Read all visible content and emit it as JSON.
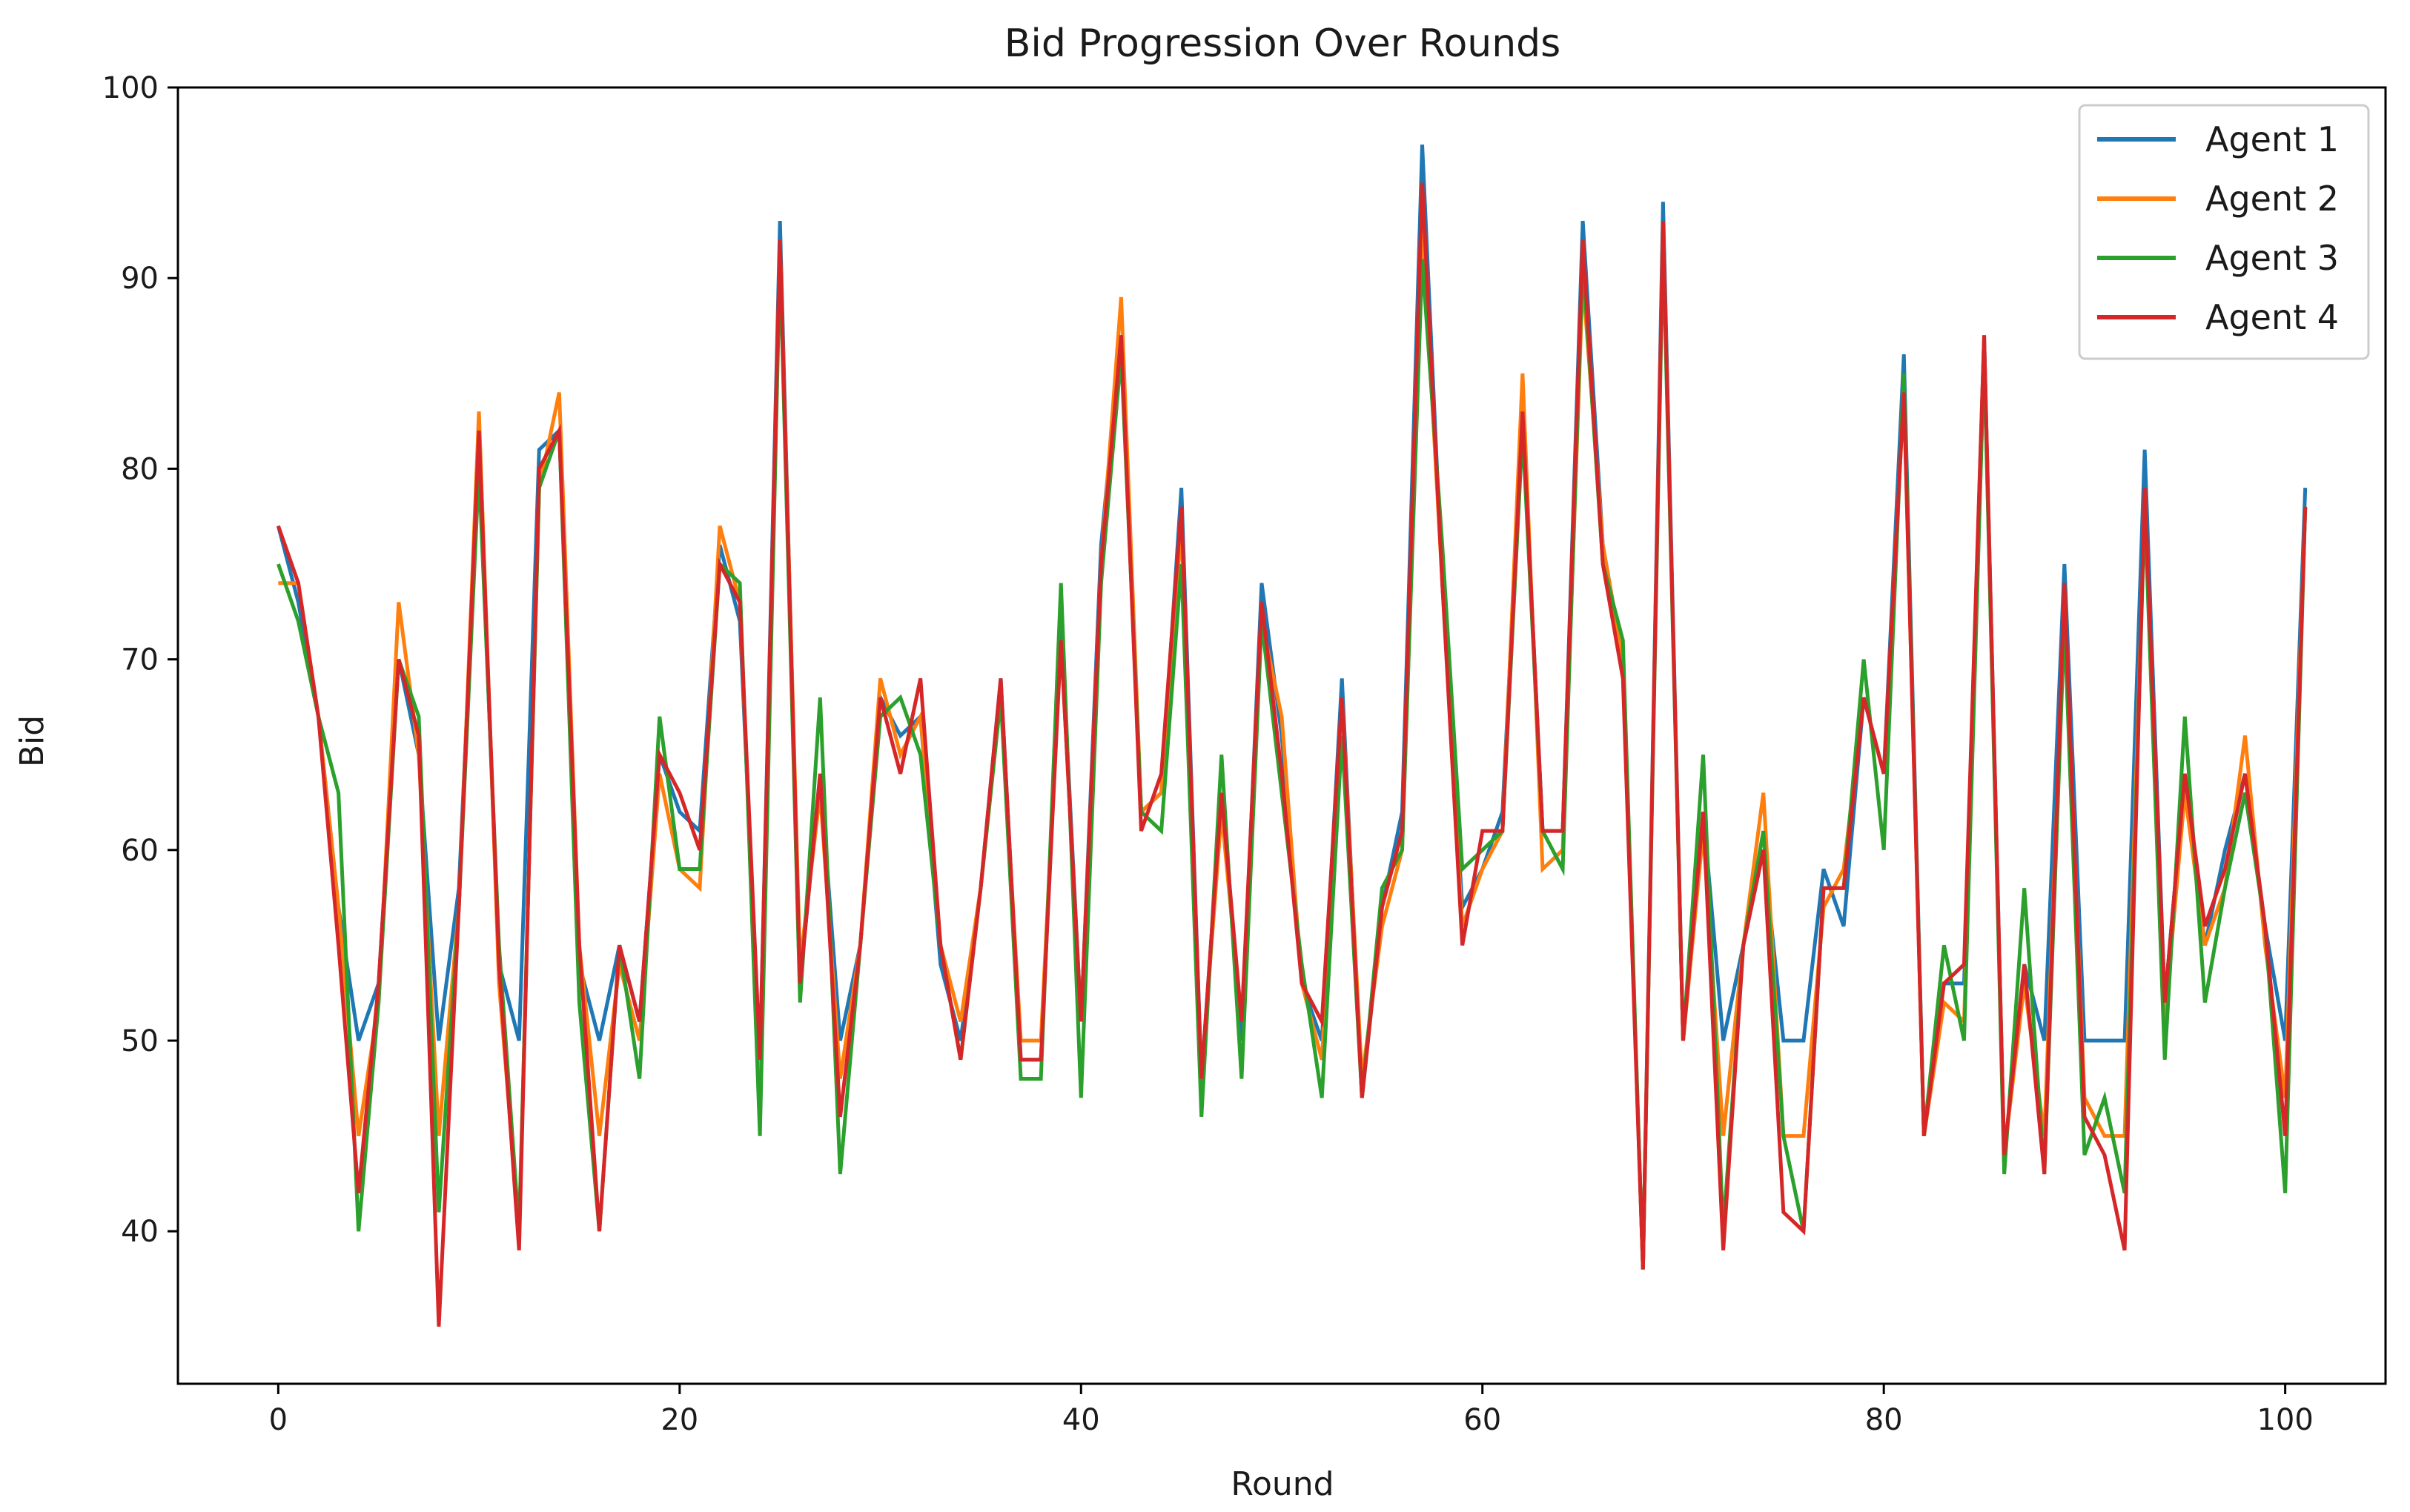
{
  "chart_data": {
    "type": "line",
    "title": "Bid Progression Over Rounds",
    "xlabel": "Round",
    "ylabel": "Bid",
    "xlim": [
      -5,
      105
    ],
    "ylim": [
      32,
      100
    ],
    "xticks": [
      0,
      20,
      40,
      60,
      80,
      100
    ],
    "yticks": [
      40,
      50,
      60,
      70,
      80,
      90,
      100
    ],
    "grid": false,
    "legend_position": "top-right",
    "series": [
      {
        "name": "Agent 1",
        "color": "#1f77b4",
        "values": [
          77,
          73,
          67,
          57,
          50,
          53,
          70,
          65,
          50,
          58,
          81,
          54,
          50,
          81,
          82,
          54,
          50,
          55,
          51,
          65,
          62,
          61,
          76,
          72,
          49,
          93,
          53,
          64,
          50,
          55,
          68,
          66,
          67,
          54,
          50,
          58,
          69,
          49,
          49,
          72,
          51,
          76,
          87,
          62,
          63,
          79,
          48,
          63,
          50,
          74,
          66,
          53,
          50,
          69,
          47,
          57,
          62,
          97,
          74,
          57,
          59,
          62,
          83,
          61,
          61,
          93,
          76,
          70,
          38,
          94,
          50,
          62,
          50,
          55,
          60,
          50,
          50,
          59,
          56,
          68,
          64,
          86,
          45,
          53,
          53,
          87,
          44,
          54,
          50,
          75,
          50,
          50,
          50,
          81,
          52,
          64,
          55,
          60,
          64,
          56,
          50,
          79
        ]
      },
      {
        "name": "Agent 2",
        "color": "#ff7f0e",
        "values": [
          74,
          74,
          67,
          57,
          45,
          52,
          73,
          65,
          45,
          57,
          83,
          53,
          40,
          79,
          84,
          55,
          45,
          54,
          50,
          64,
          59,
          58,
          77,
          73,
          48,
          92,
          54,
          63,
          48,
          55,
          69,
          65,
          67,
          55,
          51,
          58,
          68,
          50,
          50,
          71,
          51,
          75,
          89,
          62,
          63,
          77,
          48,
          62,
          51,
          72,
          67,
          53,
          49,
          68,
          48,
          56,
          60,
          93,
          74,
          56,
          59,
          61,
          85,
          59,
          60,
          90,
          76,
          70,
          38,
          93,
          50,
          61,
          45,
          55,
          63,
          45,
          45,
          57,
          59,
          68,
          64,
          84,
          45,
          52,
          51,
          86,
          44,
          53,
          45,
          73,
          47,
          45,
          45,
          78,
          51,
          63,
          55,
          58,
          66,
          55,
          47,
          78
        ]
      },
      {
        "name": "Agent 3",
        "color": "#2ca02c",
        "values": [
          75,
          72,
          67,
          63,
          40,
          52,
          70,
          67,
          41,
          57,
          80,
          55,
          40,
          79,
          82,
          52,
          40,
          55,
          48,
          67,
          59,
          59,
          75,
          74,
          45,
          91,
          52,
          68,
          43,
          55,
          67,
          68,
          65,
          55,
          49,
          58,
          68,
          48,
          48,
          74,
          47,
          74,
          86,
          62,
          61,
          75,
          46,
          65,
          48,
          72,
          63,
          54,
          47,
          66,
          47,
          58,
          60,
          91,
          76,
          59,
          60,
          61,
          82,
          61,
          59,
          91,
          75,
          71,
          38,
          92,
          50,
          65,
          40,
          55,
          61,
          45,
          40,
          58,
          58,
          70,
          60,
          85,
          45,
          55,
          50,
          86,
          43,
          58,
          43,
          72,
          44,
          47,
          42,
          78,
          49,
          67,
          52,
          58,
          63,
          56,
          42,
          78
        ]
      },
      {
        "name": "Agent 4",
        "color": "#d62728",
        "values": [
          77,
          74,
          67,
          55,
          42,
          53,
          70,
          66,
          35,
          57,
          82,
          54,
          39,
          80,
          82,
          55,
          40,
          55,
          51,
          65,
          63,
          60,
          75,
          73,
          49,
          92,
          53,
          64,
          46,
          55,
          68,
          64,
          69,
          55,
          49,
          58,
          69,
          49,
          49,
          71,
          51,
          75,
          87,
          61,
          64,
          78,
          48,
          63,
          51,
          73,
          64,
          53,
          51,
          68,
          47,
          57,
          61,
          95,
          74,
          55,
          61,
          61,
          83,
          61,
          61,
          92,
          75,
          69,
          38,
          93,
          50,
          62,
          39,
          55,
          60,
          41,
          40,
          58,
          58,
          68,
          64,
          84,
          45,
          53,
          54,
          87,
          44,
          54,
          43,
          74,
          46,
          44,
          39,
          79,
          52,
          64,
          56,
          59,
          64,
          56,
          45,
          78
        ]
      }
    ]
  }
}
